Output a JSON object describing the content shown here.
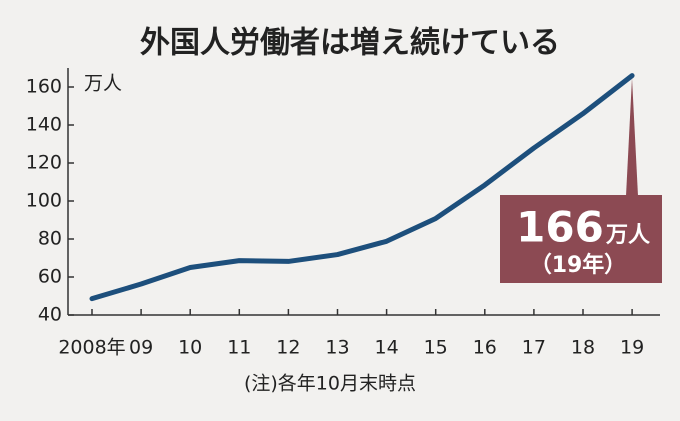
{
  "chart_data": {
    "type": "line",
    "title": "外国人労働者は増え続けている",
    "y_unit": "万人",
    "categories": [
      "2008年",
      "09",
      "10",
      "11",
      "12",
      "13",
      "14",
      "15",
      "16",
      "17",
      "18",
      "19"
    ],
    "values": [
      48.6,
      56.3,
      65,
      68.6,
      68.2,
      71.8,
      78.8,
      90.8,
      108.4,
      127.9,
      146,
      166
    ],
    "color": "#1d4f7c",
    "ylim": [
      40,
      170
    ],
    "yticks": [
      40,
      60,
      80,
      100,
      120,
      140,
      160
    ],
    "grid": false,
    "annotation": "（19年）",
    "note": "(注)各年10月末時点"
  }
}
